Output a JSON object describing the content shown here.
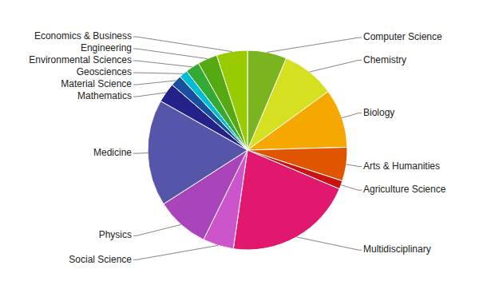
{
  "chart_data": {
    "type": "pie",
    "categories": [
      "Computer Science",
      "Chemistry",
      "Biology",
      "Arts & Humanities",
      "Agriculture Science",
      "Multidisciplinary",
      "Social Science",
      "Physics",
      "Medicine",
      "Mathematics",
      "Material Science",
      "Geosciences",
      "Environmental Sciences",
      "Engineering",
      "Economics & Business"
    ],
    "values": [
      7.0,
      9.5,
      10.5,
      6.0,
      1.5,
      23.0,
      5.5,
      9.5,
      19.0,
      3.5,
      2.0,
      1.5,
      2.5,
      3.5,
      5.5
    ],
    "colors": [
      "#7ab521",
      "#d4e020",
      "#f5a800",
      "#e05500",
      "#cc1111",
      "#e0186e",
      "#cc55cc",
      "#aa44bb",
      "#5555aa",
      "#222288",
      "#1a4fa0",
      "#00bcd4",
      "#33aa33",
      "#55aa11",
      "#99cc00"
    ]
  }
}
